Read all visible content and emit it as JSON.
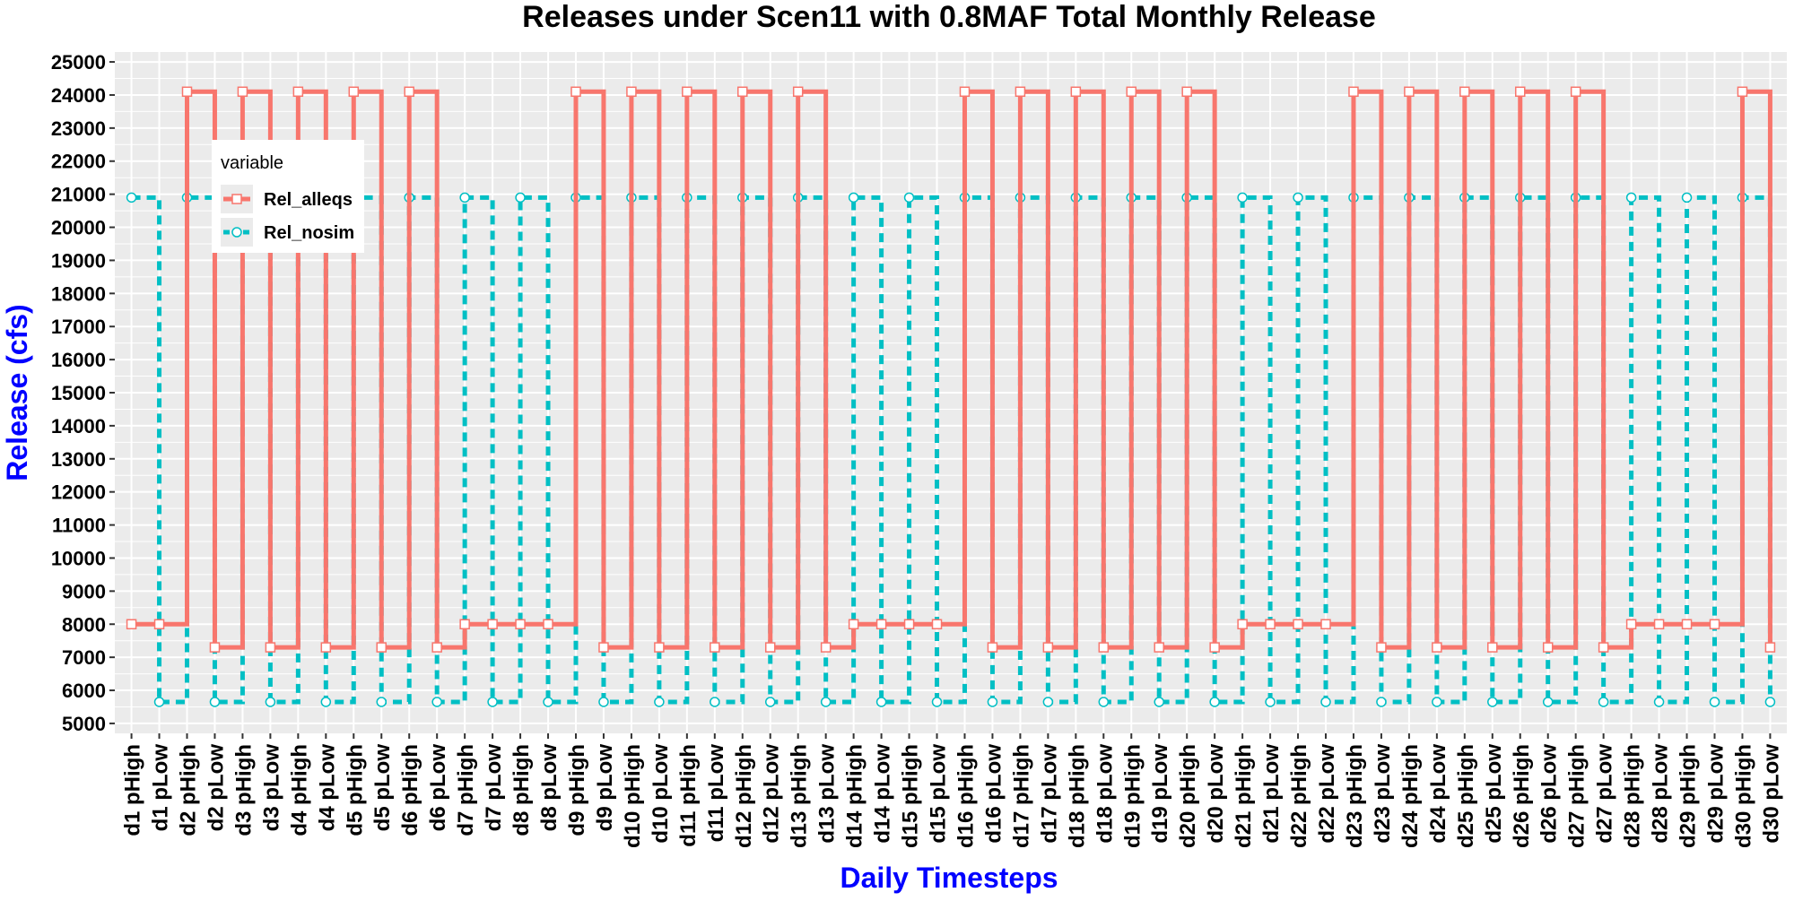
{
  "chart_data": {
    "type": "line",
    "step": "hv",
    "title": "Releases under Scen11 with 0.8MAF Total Monthly Release",
    "xlabel": "Daily Timesteps",
    "ylabel": "Release (cfs)",
    "ylim": [
      5000,
      25000
    ],
    "yticks": [
      5000,
      6000,
      7000,
      8000,
      9000,
      10000,
      11000,
      12000,
      13000,
      14000,
      15000,
      16000,
      17000,
      18000,
      19000,
      20000,
      21000,
      22000,
      23000,
      24000,
      25000
    ],
    "ytick_labels": [
      "5000",
      "6000",
      "7000",
      "8000",
      "9000",
      "10000",
      "11000",
      "12000",
      "13000",
      "14000",
      "15000",
      "16000",
      "17000",
      "18000",
      "19000",
      "20000",
      "21000",
      "22000",
      "23000",
      "24000",
      "25000"
    ],
    "grid": true,
    "legend_title": "variable",
    "legend_position": "top-left inside",
    "categories": [
      "d1 pHigh",
      "d1 pLow",
      "d2 pHigh",
      "d2 pLow",
      "d3 pHigh",
      "d3 pLow",
      "d4 pHigh",
      "d4 pLow",
      "d5 pHigh",
      "d5 pLow",
      "d6 pHigh",
      "d6 pLow",
      "d7 pHigh",
      "d7 pLow",
      "d8 pHigh",
      "d8 pLow",
      "d9 pHigh",
      "d9 pLow",
      "d10 pHigh",
      "d10 pLow",
      "d11 pHigh",
      "d11 pLow",
      "d12 pHigh",
      "d12 pLow",
      "d13 pHigh",
      "d13 pLow",
      "d14 pHigh",
      "d14 pLow",
      "d15 pHigh",
      "d15 pLow",
      "d16 pHigh",
      "d16 pLow",
      "d17 pHigh",
      "d17 pLow",
      "d18 pHigh",
      "d18 pLow",
      "d19 pHigh",
      "d19 pLow",
      "d20 pHigh",
      "d20 pLow",
      "d21 pHigh",
      "d21 pLow",
      "d22 pHigh",
      "d22 pLow",
      "d23 pHigh",
      "d23 pLow",
      "d24 pHigh",
      "d24 pLow",
      "d25 pHigh",
      "d25 pLow",
      "d26 pHigh",
      "d26 pLow",
      "d27 pHigh",
      "d27 pLow",
      "d28 pHigh",
      "d28 pLow",
      "d29 pHigh",
      "d29 pLow",
      "d30 pHigh",
      "d30 pLow"
    ],
    "series": [
      {
        "name": "Rel_alleqs",
        "color": "#F8766D",
        "linetype": "solid",
        "marker": "square",
        "values": [
          8000,
          8000,
          24100,
          7300,
          24100,
          7300,
          24100,
          7300,
          24100,
          7300,
          24100,
          7300,
          8000,
          8000,
          8000,
          8000,
          24100,
          7300,
          24100,
          7300,
          24100,
          7300,
          24100,
          7300,
          24100,
          7300,
          8000,
          8000,
          8000,
          8000,
          24100,
          7300,
          24100,
          7300,
          24100,
          7300,
          24100,
          7300,
          24100,
          7300,
          8000,
          8000,
          8000,
          8000,
          24100,
          7300,
          24100,
          7300,
          24100,
          7300,
          24100,
          7300,
          24100,
          7300,
          8000,
          8000,
          8000,
          8000,
          24100,
          7300
        ]
      },
      {
        "name": "Rel_nosim",
        "color": "#00BFC4",
        "linetype": "dashed",
        "marker": "circle",
        "values": [
          20900,
          5650,
          20900,
          5650,
          20900,
          5650,
          20900,
          5650,
          20900,
          5650,
          20900,
          5650,
          20900,
          5650,
          20900,
          5650,
          20900,
          5650,
          20900,
          5650,
          20900,
          5650,
          20900,
          5650,
          20900,
          5650,
          20900,
          5650,
          20900,
          5650,
          20900,
          5650,
          20900,
          5650,
          20900,
          5650,
          20900,
          5650,
          20900,
          5650,
          20900,
          5650,
          20900,
          5650,
          20900,
          5650,
          20900,
          5650,
          20900,
          5650,
          20900,
          5650,
          20900,
          5650,
          20900,
          5650,
          20900,
          5650,
          20900,
          5650
        ]
      }
    ]
  },
  "colors": {
    "panel_background": "#EBEBEB",
    "grid_line": "#FFFFFF",
    "axis_title_color": "#0000FF"
  }
}
